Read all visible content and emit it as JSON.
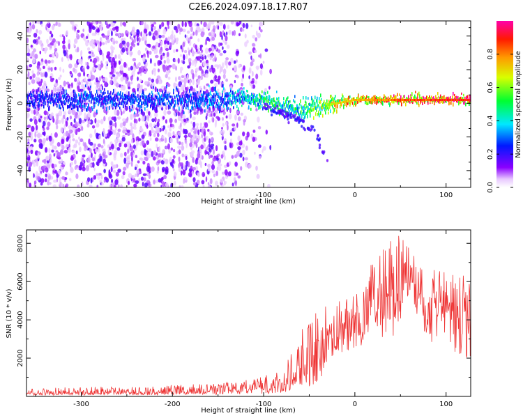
{
  "title": "C2E6.2024.097.18.17.R07",
  "chart_data": [
    {
      "type": "heatmap",
      "xlabel": "Height of straight line (km)",
      "ylabel": "Frequency (Hz)",
      "xlim": [
        -360,
        127
      ],
      "ylim": [
        -50,
        49
      ],
      "xticks": [
        -300,
        -200,
        -100,
        0,
        100
      ],
      "yticks": [
        -40,
        -20,
        0,
        20,
        40
      ],
      "grid": false,
      "colorbar": {
        "label": "Normalized spectral amplitude",
        "range": [
          0,
          1
        ],
        "ticks": [
          0.0,
          0.2,
          0.4,
          0.6,
          0.8
        ],
        "colormap": "rainbow (purple-white to magenta)"
      },
      "ridge": {
        "description": "Bright spectral band near 0 Hz",
        "x": [
          -360,
          -300,
          -250,
          -200,
          -150,
          -120,
          -100,
          -80,
          -60,
          -40,
          -20,
          0,
          50,
          100,
          127
        ],
        "center_freq": [
          2,
          2,
          2,
          2,
          2,
          3,
          2,
          -2,
          -4,
          -2,
          0,
          2,
          2,
          2,
          2
        ],
        "amplitude": [
          0.25,
          0.3,
          0.3,
          0.3,
          0.35,
          0.45,
          0.5,
          0.5,
          0.5,
          0.6,
          0.75,
          0.8,
          0.9,
          0.95,
          0.95
        ]
      },
      "branch": {
        "description": "Weak descending branch",
        "x": [
          -100,
          -80,
          -60,
          -45,
          -40,
          -30
        ],
        "freq": [
          -2,
          -6,
          -10,
          -17,
          -22,
          -36
        ]
      },
      "noise_region_x": [
        -360,
        -100
      ]
    },
    {
      "type": "line",
      "xlabel": "Height of straight line (km)",
      "ylabel": "SNR (10 * v/v)",
      "xlim": [
        -360,
        127
      ],
      "ylim": [
        0,
        8700
      ],
      "xticks": [
        -300,
        -200,
        -100,
        0,
        100
      ],
      "yticks": [
        2000,
        4000,
        6000,
        8000
      ],
      "grid": false,
      "series": [
        {
          "color": "#ee3333",
          "x": [
            -360,
            -300,
            -250,
            -200,
            -150,
            -120,
            -100,
            -80,
            -70,
            -60,
            -50,
            -40,
            -30,
            -20,
            -10,
            0,
            10,
            20,
            30,
            40,
            50,
            60,
            70,
            80,
            90,
            100,
            110,
            120,
            127
          ],
          "y": [
            250,
            280,
            300,
            320,
            420,
            600,
            700,
            900,
            1400,
            2000,
            2500,
            3000,
            3300,
            3600,
            3800,
            3900,
            4500,
            5500,
            5200,
            5400,
            5800,
            6200,
            5600,
            4800,
            4600,
            4900,
            4200,
            4000,
            3800
          ],
          "peak_envelope": [
            450,
            500,
            550,
            600,
            700,
            900,
            1100,
            1400,
            2300,
            3500,
            4000,
            4500,
            5000,
            5200,
            5400,
            5700,
            6500,
            7000,
            7600,
            8300,
            8600,
            8100,
            7200,
            6900,
            6700,
            6700,
            6400,
            6400,
            6000
          ]
        }
      ]
    }
  ]
}
